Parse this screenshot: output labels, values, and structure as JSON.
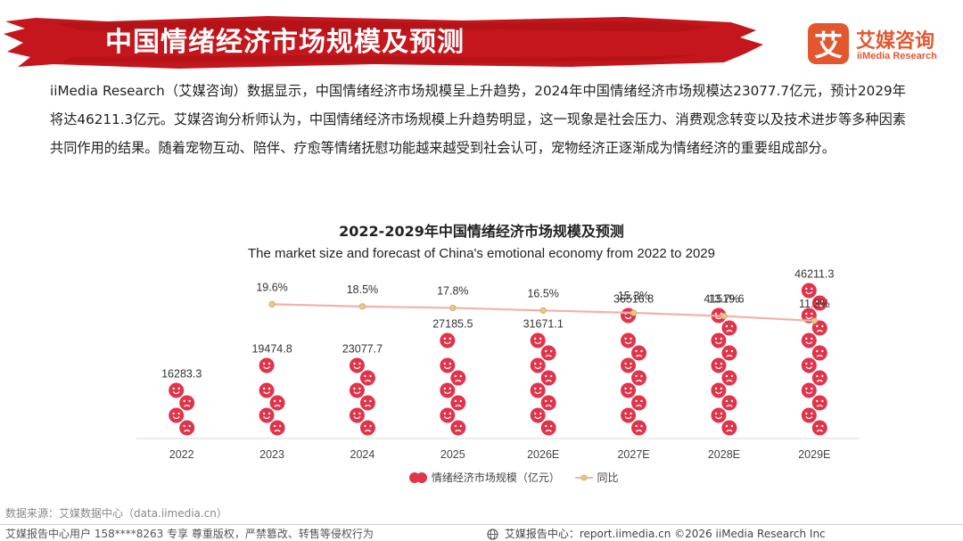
{
  "header": {
    "title": "中国情绪经济市场规模及预测",
    "logo_cn": "艾媒咨询",
    "logo_en": "iiMedia Research",
    "logo_glyph": "艾"
  },
  "intro": "iiMedia Research（艾媒咨询）数据显示，中国情绪经济市场规模呈上升趋势，2024年中国情绪经济市场规模达23077.7亿元，预计2029年将达46211.3亿元。艾媒咨询分析师认为，中国情绪经济市场规模上升趋势明显，这一现象是社会压力、消费观念转变以及技术进步等多种因素共同作用的结果。随着宠物互动、陪伴、疗愈等情绪抚慰功能越来越受到社会认可，宠物经济正逐渐成为情绪经济的重要组成部分。",
  "chart_data": {
    "type": "bar",
    "title": "2022-2029年中国情绪经济市场规模及预测",
    "subtitle": "The market size and forecast of China's emotional economy from 2022 to 2029",
    "categories": [
      "2022",
      "2023",
      "2024",
      "2025",
      "2026E",
      "2027E",
      "2028E",
      "2029E"
    ],
    "series": [
      {
        "name": "情绪经济市场规模（亿元）",
        "type": "pictorial-bar",
        "values": [
          16283.3,
          19474.8,
          23077.7,
          27185.5,
          31671.1,
          36516.8,
          41519.6,
          46211.3
        ],
        "labels": [
          "16283.3",
          "19474.8",
          "23077.7",
          "27185.5",
          "31671.1",
          "36516.8",
          "41519.6",
          "46211.3"
        ]
      },
      {
        "name": "同比",
        "type": "line",
        "x": [
          "2023",
          "2024",
          "2025",
          "2026E",
          "2027E",
          "2028E",
          "2029E"
        ],
        "values": [
          19.6,
          18.5,
          17.8,
          16.5,
          15.3,
          13.7,
          11.3
        ],
        "labels": [
          "19.6%",
          "18.5%",
          "17.8%",
          "16.5%",
          "15.3%",
          "13.7%",
          "11.3%"
        ]
      }
    ],
    "ylim_bar": [
      0,
      60000
    ],
    "ylim_line": [
      0,
      20
    ],
    "legend_position": "bottom-center",
    "colors": {
      "icon": "#e0344a",
      "line": "#f2b3a8",
      "marker": "#e8c987",
      "axis": "#d9d9d9",
      "text": "#333333"
    }
  },
  "source": "数据来源：艾媒数据中心（data.iimedia.cn）",
  "footer": {
    "left": "艾媒报告中心用户 158****8263 专享 尊重版权，严禁篡改、转售等侵权行为",
    "right": "艾媒报告中心：report.iimedia.cn    ©2026  iiMedia Research  Inc"
  }
}
